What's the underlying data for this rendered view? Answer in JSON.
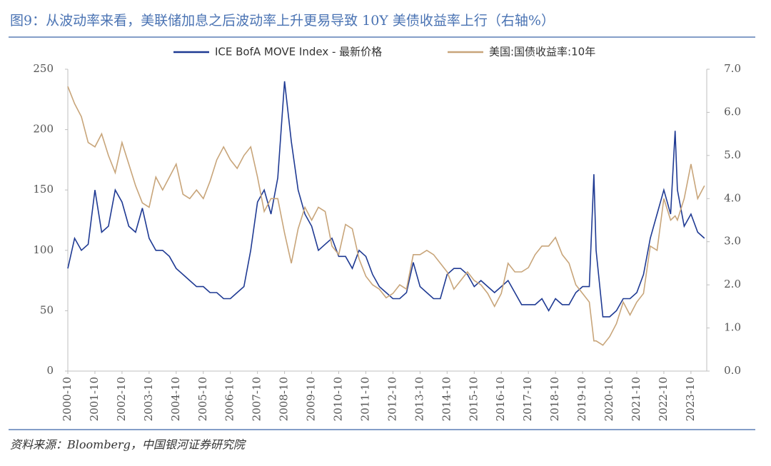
{
  "chart_data": {
    "type": "line",
    "title": "图9：从波动率来看，美联储加息之后波动率上升更易导致 10Y 美债收益率上行（右轴%）",
    "source": "资料来源：Bloomberg，中国银河证券研究院",
    "x": [
      "2000-10",
      "2001-01",
      "2001-04",
      "2001-07",
      "2001-10",
      "2002-01",
      "2002-04",
      "2002-07",
      "2002-10",
      "2003-01",
      "2003-04",
      "2003-07",
      "2003-10",
      "2004-01",
      "2004-04",
      "2004-07",
      "2004-10",
      "2005-01",
      "2005-04",
      "2005-07",
      "2005-10",
      "2006-01",
      "2006-04",
      "2006-07",
      "2006-10",
      "2007-01",
      "2007-04",
      "2007-07",
      "2007-10",
      "2008-01",
      "2008-04",
      "2008-07",
      "2008-10",
      "2009-01",
      "2009-04",
      "2009-07",
      "2009-10",
      "2010-01",
      "2010-04",
      "2010-07",
      "2010-10",
      "2011-01",
      "2011-04",
      "2011-07",
      "2011-10",
      "2012-01",
      "2012-04",
      "2012-07",
      "2012-10",
      "2013-01",
      "2013-04",
      "2013-07",
      "2013-10",
      "2014-01",
      "2014-04",
      "2014-07",
      "2014-10",
      "2015-01",
      "2015-04",
      "2015-07",
      "2015-10",
      "2016-01",
      "2016-04",
      "2016-07",
      "2016-10",
      "2017-01",
      "2017-04",
      "2017-07",
      "2017-10",
      "2018-01",
      "2018-04",
      "2018-07",
      "2018-10",
      "2019-01",
      "2019-04",
      "2019-07",
      "2019-10",
      "2020-01",
      "2020-03",
      "2020-04",
      "2020-07",
      "2020-10",
      "2021-01",
      "2021-04",
      "2021-07",
      "2021-10",
      "2022-01",
      "2022-04",
      "2022-07",
      "2022-10",
      "2023-01",
      "2023-03",
      "2023-04",
      "2023-07",
      "2023-10",
      "2024-01",
      "2024-04"
    ],
    "xlim": [
      "2000-10",
      "2024-05"
    ],
    "xticks": [
      "2000-10",
      "2001-10",
      "2002-10",
      "2003-10",
      "2004-10",
      "2005-10",
      "2006-10",
      "2007-10",
      "2008-10",
      "2009-10",
      "2010-10",
      "2011-10",
      "2012-10",
      "2013-10",
      "2014-10",
      "2015-10",
      "2016-10",
      "2017-10",
      "2018-10",
      "2019-10",
      "2020-10",
      "2021-10",
      "2022-10",
      "2023-10"
    ],
    "ylim": [
      0,
      250
    ],
    "yticks": [
      0,
      50,
      100,
      150,
      200,
      250
    ],
    "y2lim": [
      0,
      7
    ],
    "y2ticks": [
      {
        "value": 0,
        "label": "0.0"
      },
      {
        "value": 1,
        "label": "1.0"
      },
      {
        "value": 2,
        "label": "2.0"
      },
      {
        "value": 3,
        "label": "3.0"
      },
      {
        "value": 4,
        "label": "4.0"
      },
      {
        "value": 5,
        "label": "5.0"
      },
      {
        "value": 6,
        "label": "6.0"
      },
      {
        "value": 7,
        "label": "7.0"
      }
    ],
    "series": [
      {
        "name": "ICE BofA MOVE Index - 最新价格",
        "color": "#1f3a93",
        "values": [
          85,
          110,
          100,
          105,
          150,
          115,
          120,
          150,
          140,
          120,
          115,
          135,
          110,
          100,
          100,
          95,
          85,
          80,
          75,
          70,
          70,
          65,
          65,
          60,
          60,
          65,
          70,
          100,
          140,
          150,
          130,
          160,
          240,
          190,
          150,
          130,
          120,
          100,
          105,
          110,
          95,
          95,
          85,
          100,
          95,
          80,
          70,
          65,
          60,
          60,
          65,
          90,
          70,
          65,
          60,
          60,
          80,
          85,
          85,
          80,
          70,
          75,
          70,
          65,
          70,
          75,
          65,
          55,
          55,
          55,
          60,
          50,
          60,
          55,
          55,
          65,
          70,
          70,
          163,
          100,
          45,
          45,
          50,
          60,
          60,
          65,
          80,
          110,
          130,
          150,
          130,
          199,
          150,
          120,
          130,
          115,
          110
        ]
      },
      {
        "name": "美国:国债收益率:10年",
        "color": "#c8a57a",
        "axis": "y2",
        "values": [
          6.6,
          6.2,
          5.9,
          5.3,
          5.2,
          5.5,
          5.0,
          4.6,
          5.3,
          4.8,
          4.3,
          3.9,
          3.8,
          4.5,
          4.2,
          4.5,
          4.8,
          4.1,
          4.0,
          4.2,
          4.0,
          4.4,
          4.9,
          5.2,
          4.9,
          4.7,
          5.0,
          5.2,
          4.5,
          3.7,
          4.0,
          4.0,
          3.2,
          2.5,
          3.3,
          3.8,
          3.5,
          3.8,
          3.7,
          2.9,
          2.7,
          3.4,
          3.3,
          2.6,
          2.2,
          2.0,
          1.9,
          1.7,
          1.8,
          2.0,
          1.9,
          2.7,
          2.7,
          2.8,
          2.7,
          2.5,
          2.3,
          1.9,
          2.1,
          2.3,
          2.1,
          2.0,
          1.8,
          1.5,
          1.8,
          2.5,
          2.3,
          2.3,
          2.4,
          2.7,
          2.9,
          2.9,
          3.1,
          2.7,
          2.5,
          2.0,
          1.8,
          1.6,
          0.7,
          0.7,
          0.6,
          0.8,
          1.1,
          1.6,
          1.3,
          1.6,
          1.8,
          2.9,
          2.8,
          4.0,
          3.5,
          3.6,
          3.5,
          4.0,
          4.8,
          4.0,
          4.3
        ]
      }
    ]
  }
}
